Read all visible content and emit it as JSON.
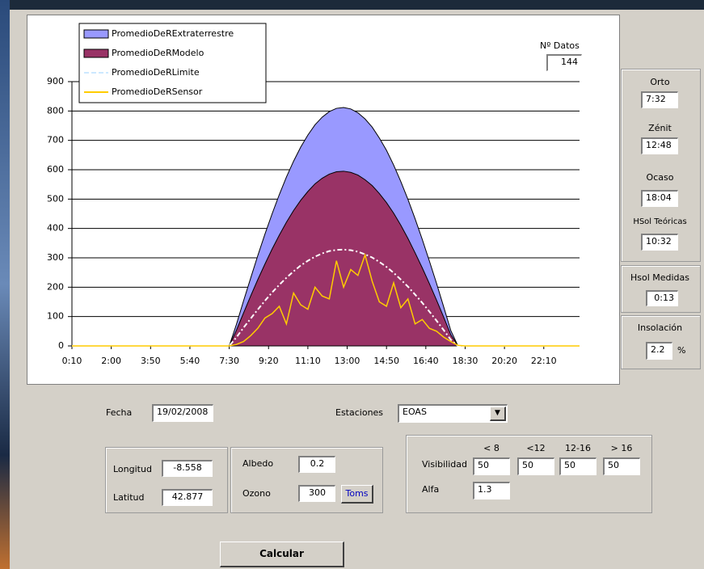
{
  "chart_data": {
    "type": "area",
    "x": [
      10,
      430,
      450,
      470,
      490,
      510,
      530,
      550,
      570,
      590,
      610,
      630,
      650,
      670,
      690,
      710,
      730,
      750,
      770,
      790,
      810,
      830,
      850,
      870,
      890,
      910,
      930,
      950,
      970,
      990,
      1010,
      1030,
      1050,
      1070,
      1090,
      1110,
      1130,
      1430
    ],
    "xlim": [
      10,
      1430
    ],
    "xticks": [
      {
        "value": 10,
        "label": "0:10"
      },
      {
        "value": 120,
        "label": "2:00"
      },
      {
        "value": 230,
        "label": "3:50"
      },
      {
        "value": 340,
        "label": "5:40"
      },
      {
        "value": 450,
        "label": "7:30"
      },
      {
        "value": 560,
        "label": "9:20"
      },
      {
        "value": 670,
        "label": "11:10"
      },
      {
        "value": 780,
        "label": "13:00"
      },
      {
        "value": 890,
        "label": "14:50"
      },
      {
        "value": 1000,
        "label": "16:40"
      },
      {
        "value": 1110,
        "label": "18:30"
      },
      {
        "value": 1220,
        "label": "20:20"
      },
      {
        "value": 1330,
        "label": "22:10"
      }
    ],
    "ylim": [
      0,
      900
    ],
    "yticks": [
      0,
      100,
      200,
      300,
      400,
      500,
      600,
      700,
      800,
      900
    ],
    "grid": true,
    "legend": "top-left",
    "series": [
      {
        "name": "PromedioDeRExtraterrestre",
        "type": "area",
        "color": "#9999ff",
        "values": [
          0,
          0,
          0,
          73,
          153,
          231,
          308,
          381,
          450,
          515,
          575,
          629,
          677,
          718,
          753,
          779,
          798,
          809,
          812,
          807,
          794,
          773,
          745,
          708,
          666,
          616,
          560,
          499,
          433,
          363,
          289,
          213,
          133,
          52,
          0,
          0,
          0,
          0
        ]
      },
      {
        "name": "PromedioDeRModelo",
        "type": "area",
        "color": "#993366",
        "values": [
          0,
          0,
          0,
          53,
          112,
          170,
          226,
          279,
          330,
          377,
          421,
          461,
          496,
          526,
          552,
          571,
          585,
          593,
          595,
          591,
          582,
          566,
          546,
          519,
          488,
          452,
          411,
          366,
          317,
          266,
          212,
          156,
          98,
          38,
          0,
          0,
          0,
          0
        ]
      },
      {
        "name": "PromedioDeRLimite",
        "type": "line",
        "dashed": true,
        "color": "#ffffff",
        "values": [
          0,
          0,
          0,
          29,
          62,
          93,
          124,
          154,
          182,
          208,
          232,
          254,
          274,
          290,
          304,
          315,
          323,
          327,
          328,
          326,
          321,
          312,
          301,
          286,
          269,
          249,
          226,
          202,
          175,
          147,
          117,
          86,
          54,
          21,
          0,
          0,
          0,
          0
        ]
      },
      {
        "name": "PromedioDeRSensor",
        "type": "line",
        "color": "#ffcc00",
        "values": [
          0,
          0,
          0,
          5,
          15,
          35,
          60,
          95,
          110,
          135,
          75,
          180,
          140,
          125,
          200,
          170,
          160,
          290,
          200,
          260,
          240,
          310,
          220,
          150,
          135,
          215,
          130,
          160,
          75,
          90,
          60,
          50,
          30,
          15,
          2,
          0,
          0,
          0
        ]
      }
    ]
  },
  "datos": {
    "label": "Nº Datos",
    "value": "144"
  },
  "summary": [
    {
      "label": "Orto",
      "value": "7:32"
    },
    {
      "label": "Zénit",
      "value": "12:48"
    },
    {
      "label": "Ocaso",
      "value": "18:04"
    },
    {
      "label": "HSol Teóricas",
      "value": "10:32"
    }
  ],
  "measured": {
    "label": "Hsol Medidas",
    "value": "0:13"
  },
  "insolation": {
    "label": "Insolación",
    "value": "2.2",
    "unit": "%"
  },
  "form": {
    "fecha": {
      "label": "Fecha",
      "value": "19/02/2008"
    },
    "estaciones": {
      "label": "Estaciones",
      "value": "EOAS"
    },
    "longitud": {
      "label": "Longitud",
      "value": "-8.558"
    },
    "latitud": {
      "label": "Latitud",
      "value": "42.877"
    },
    "albedo": {
      "label": "Albedo",
      "value": "0.2"
    },
    "ozono": {
      "label": "Ozono",
      "value": "300"
    },
    "toms": "Toms",
    "visibilidad": {
      "label": "Visibilidad",
      "headers": [
        "< 8",
        "<12",
        "12-16",
        "> 16"
      ],
      "values": [
        "50",
        "50",
        "50",
        "50"
      ]
    },
    "alfa": {
      "label": "Alfa",
      "value": "1.3"
    },
    "calcular": "Calcular"
  }
}
